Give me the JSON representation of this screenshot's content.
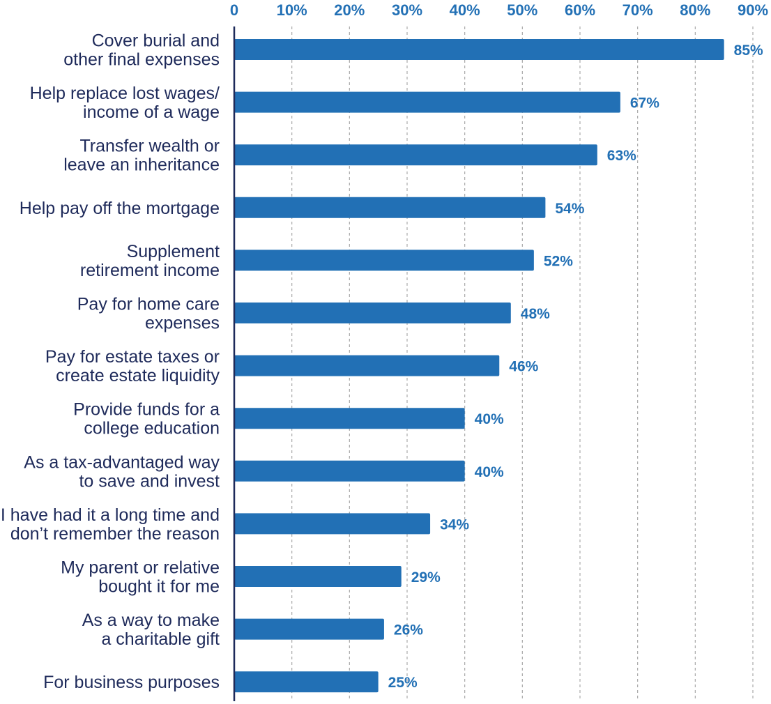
{
  "chart_data": {
    "type": "bar",
    "orientation": "horizontal",
    "title": "",
    "xlabel": "",
    "ylabel": "",
    "xlim": [
      0,
      90
    ],
    "ticks": [
      0,
      10,
      20,
      30,
      40,
      50,
      60,
      70,
      80,
      90
    ],
    "tick_labels": [
      "0",
      "10%",
      "20%",
      "30%",
      "40%",
      "50%",
      "60%",
      "70%",
      "80%",
      "90%"
    ],
    "grid": true,
    "legend": "none",
    "colors": {
      "bar": "#2270b5",
      "label": "#1e2a5a",
      "value": "#2270b5",
      "axis": "#1e2a5a",
      "grid": "#a9a9a9"
    },
    "categories": [
      [
        "Cover burial and",
        "other final expenses"
      ],
      [
        "Help replace lost wages/",
        "income of a wage"
      ],
      [
        "Transfer wealth or",
        "leave an inheritance"
      ],
      [
        "Help pay off the mortgage"
      ],
      [
        "Supplement",
        "retirement income"
      ],
      [
        "Pay for home care",
        "expenses"
      ],
      [
        "Pay for estate taxes or",
        "create estate liquidity"
      ],
      [
        "Provide funds for a",
        "college education"
      ],
      [
        "As a tax-advantaged way",
        "to save and invest"
      ],
      [
        "I have had it a long time and",
        "don’t remember the reason"
      ],
      [
        "My parent or relative",
        "bought it for me"
      ],
      [
        "As a way to make",
        "a charitable gift"
      ],
      [
        "For business purposes"
      ]
    ],
    "values": [
      85,
      67,
      63,
      54,
      52,
      48,
      46,
      40,
      40,
      34,
      29,
      26,
      25
    ],
    "value_labels": [
      "85%",
      "67%",
      "63%",
      "54%",
      "52%",
      "48%",
      "46%",
      "40%",
      "40%",
      "34%",
      "29%",
      "26%",
      "25%"
    ]
  }
}
